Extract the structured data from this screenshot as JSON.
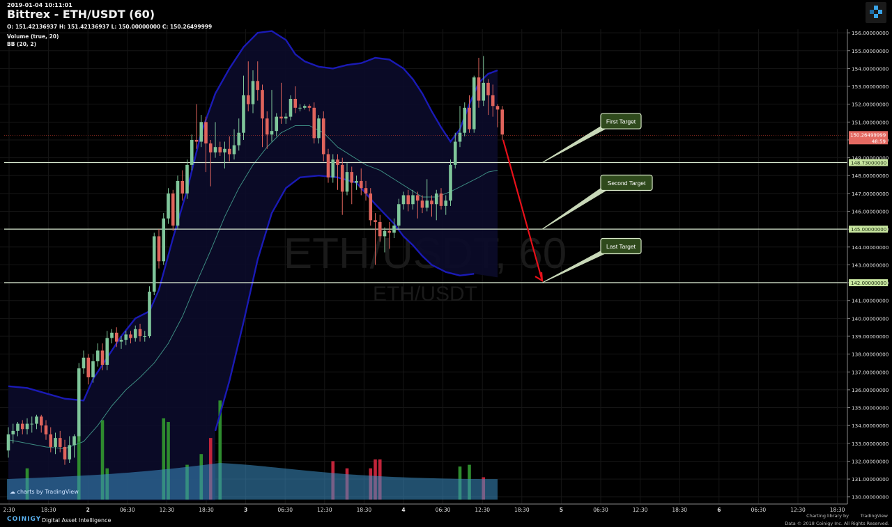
{
  "header": {
    "timestamp": "2019-01-04 10:11:01",
    "title": "Bittrex - ETH/USDT (60)",
    "ohlc": "O: 151.42136937 H: 151.42136937 L: 150.00000000 C: 150.26499999",
    "volume_indicator": "Volume (true, 20)",
    "bb_indicator": "BB (20, 2)"
  },
  "watermark": {
    "line1": "ETH/USDT, 60",
    "line2": "ETH/USDT"
  },
  "footer": {
    "brand": "COINIGY",
    "tagline": "Digital Asset Intelligence",
    "charting": "Charting library by",
    "tradingview": "TradingView",
    "copyright": "Data © 2018 Coinigy Inc. All Rights Reserved.",
    "badge": "charts by TradingView"
  },
  "colors": {
    "up": "#7fc69a",
    "down": "#e0645c",
    "volume_up": "#2e8b2e",
    "volume_down": "#c2243a",
    "bb_band": "#1a1ab5",
    "bb_basis": "#3d8c82",
    "target_box": "#2f4a1c",
    "arrow": "#e8101a",
    "price_label": "#c8e6a0",
    "current_label": "#e46a62"
  },
  "chart_data": {
    "type": "candlestick",
    "timeframe": "60",
    "ylim": [
      129.6,
      156.2
    ],
    "y_ticks": [
      130,
      131,
      132,
      133,
      134,
      135,
      136,
      137,
      138,
      139,
      140,
      141,
      142,
      143,
      144,
      145,
      146,
      147,
      148,
      149,
      150,
      151,
      152,
      153,
      154,
      155,
      156
    ],
    "x_tick_labels": [
      "2:30",
      "18:30",
      "2",
      "06:30",
      "12:30",
      "18:30",
      "3",
      "06:30",
      "12:30",
      "18:30",
      "4",
      "06:30",
      "12:30",
      "18:30",
      "5",
      "06:30",
      "12:30",
      "18:30",
      "6",
      "06:30",
      "12:30",
      "18:30"
    ],
    "candles": [
      [
        132.6,
        133.5,
        133.9,
        132.2
      ],
      [
        133.5,
        133.7,
        134.1,
        133.0
      ],
      [
        133.7,
        134.1,
        134.2,
        133.4
      ],
      [
        134.1,
        133.8,
        134.3,
        133.5
      ],
      [
        133.8,
        134.1,
        134.4,
        133.5
      ],
      [
        134.1,
        134.1,
        134.5,
        133.6
      ],
      [
        134.1,
        134.5,
        134.6,
        133.8
      ],
      [
        134.5,
        134.0,
        134.6,
        133.6
      ],
      [
        134.0,
        133.5,
        134.3,
        133.2
      ],
      [
        133.5,
        132.8,
        133.9,
        132.5
      ],
      [
        132.8,
        133.3,
        133.6,
        132.4
      ],
      [
        133.3,
        132.8,
        133.7,
        132.5
      ],
      [
        132.8,
        132.1,
        133.2,
        131.8
      ],
      [
        132.1,
        132.9,
        133.4,
        131.9
      ],
      [
        132.9,
        133.4,
        133.5,
        132.2
      ],
      [
        133.4,
        137.2,
        137.5,
        133.1
      ],
      [
        137.2,
        137.8,
        138.2,
        136.9
      ],
      [
        137.8,
        136.7,
        138.0,
        136.3
      ],
      [
        136.7,
        137.6,
        138.0,
        136.4
      ],
      [
        137.6,
        138.2,
        138.6,
        137.3
      ],
      [
        138.2,
        137.4,
        138.6,
        137.1
      ],
      [
        137.4,
        138.9,
        139.3,
        137.1
      ],
      [
        138.9,
        139.2,
        139.4,
        138.6
      ],
      [
        139.2,
        138.7,
        139.5,
        138.4
      ],
      [
        138.7,
        138.8,
        139.0,
        138.3
      ],
      [
        138.8,
        139.1,
        139.3,
        138.5
      ],
      [
        139.1,
        138.9,
        139.3,
        138.6
      ],
      [
        138.9,
        139.4,
        139.6,
        138.7
      ],
      [
        139.4,
        139.0,
        139.7,
        138.7
      ],
      [
        139.0,
        139.0,
        139.3,
        138.7
      ],
      [
        139.0,
        141.5,
        141.8,
        138.9
      ],
      [
        141.5,
        144.6,
        144.8,
        141.3
      ],
      [
        144.6,
        143.2,
        145.0,
        142.8
      ],
      [
        143.2,
        145.6,
        145.9,
        143.0
      ],
      [
        145.6,
        147.0,
        147.3,
        145.3
      ],
      [
        147.0,
        145.2,
        147.2,
        144.9
      ],
      [
        145.2,
        147.7,
        148.0,
        145.0
      ],
      [
        147.7,
        147.0,
        148.3,
        146.6
      ],
      [
        147.0,
        148.6,
        148.9,
        146.7
      ],
      [
        148.6,
        150.0,
        150.3,
        148.3
      ],
      [
        150.0,
        149.9,
        152.0,
        149.5
      ],
      [
        149.9,
        151.0,
        151.4,
        149.6
      ],
      [
        151.0,
        149.8,
        151.3,
        148.2
      ],
      [
        149.8,
        149.3,
        150.0,
        147.4
      ],
      [
        149.3,
        149.6,
        151.0,
        149.0
      ],
      [
        149.6,
        149.3,
        149.9,
        149.1
      ],
      [
        149.3,
        149.5,
        149.9,
        148.4
      ],
      [
        149.5,
        149.2,
        150.2,
        148.8
      ],
      [
        149.2,
        149.7,
        150.6,
        148.9
      ],
      [
        149.7,
        150.4,
        151.2,
        149.4
      ],
      [
        150.4,
        152.5,
        153.6,
        150.0
      ],
      [
        152.5,
        152.0,
        154.4,
        151.6
      ],
      [
        152.0,
        153.3,
        153.9,
        151.5
      ],
      [
        153.3,
        152.8,
        154.4,
        152.2
      ],
      [
        152.8,
        151.2,
        153.1,
        149.6
      ],
      [
        151.2,
        150.3,
        151.6,
        149.5
      ],
      [
        150.3,
        150.5,
        152.8,
        149.9
      ],
      [
        150.5,
        151.3,
        151.5,
        150.2
      ],
      [
        151.3,
        151.2,
        153.2,
        150.9
      ],
      [
        151.2,
        151.3,
        151.5,
        150.9
      ],
      [
        151.3,
        152.3,
        152.5,
        151.1
      ],
      [
        152.3,
        151.8,
        153.0,
        151.5
      ],
      [
        151.8,
        151.8,
        152.0,
        151.6
      ],
      [
        151.8,
        151.9,
        152.0,
        151.7
      ],
      [
        151.9,
        151.8,
        152.0,
        151.6
      ],
      [
        151.8,
        150.1,
        152.1,
        149.8
      ],
      [
        150.1,
        151.2,
        151.4,
        149.8
      ],
      [
        151.2,
        149.2,
        151.6,
        148.8
      ],
      [
        149.2,
        147.9,
        149.5,
        147.6
      ],
      [
        147.9,
        148.9,
        149.2,
        147.6
      ],
      [
        148.9,
        148.6,
        149.2,
        147.2
      ],
      [
        148.6,
        147.1,
        149.0,
        145.8
      ],
      [
        147.1,
        148.2,
        148.7,
        146.9
      ],
      [
        148.2,
        147.6,
        148.5,
        146.4
      ],
      [
        147.6,
        147.7,
        148.0,
        147.2
      ],
      [
        147.7,
        147.3,
        148.4,
        146.9
      ],
      [
        147.3,
        147.0,
        147.7,
        146.6
      ],
      [
        147.0,
        145.5,
        147.3,
        145.2
      ],
      [
        145.5,
        145.4,
        145.9,
        143.0
      ],
      [
        145.4,
        144.6,
        145.8,
        144.3
      ],
      [
        144.6,
        144.9,
        145.1,
        143.7
      ],
      [
        144.9,
        144.8,
        145.4,
        143.9
      ],
      [
        144.8,
        145.2,
        145.6,
        144.5
      ],
      [
        145.2,
        146.4,
        146.7,
        145.0
      ],
      [
        146.4,
        146.9,
        147.1,
        146.1
      ],
      [
        146.9,
        146.4,
        147.2,
        146.0
      ],
      [
        146.4,
        146.9,
        147.2,
        146.1
      ],
      [
        146.9,
        146.6,
        147.1,
        145.6
      ],
      [
        146.6,
        146.2,
        146.9,
        145.9
      ],
      [
        146.2,
        146.6,
        147.8,
        146.0
      ],
      [
        146.6,
        146.4,
        146.9,
        145.7
      ],
      [
        146.4,
        147.0,
        147.2,
        145.5
      ],
      [
        147.0,
        146.3,
        147.3,
        146.1
      ],
      [
        146.3,
        146.6,
        146.9,
        145.8
      ],
      [
        146.6,
        148.6,
        148.9,
        146.3
      ],
      [
        148.6,
        149.9,
        150.4,
        148.4
      ],
      [
        149.9,
        150.4,
        151.9,
        149.6
      ],
      [
        150.4,
        151.8,
        152.1,
        150.2
      ],
      [
        151.8,
        150.6,
        152.5,
        150.4
      ],
      [
        150.6,
        153.5,
        153.6,
        150.4
      ],
      [
        153.5,
        152.2,
        154.6,
        151.8
      ],
      [
        152.2,
        153.2,
        154.7,
        151.9
      ],
      [
        153.2,
        152.5,
        153.4,
        151.4
      ],
      [
        152.5,
        151.9,
        153.1,
        151.3
      ],
      [
        151.9,
        151.7,
        152.0,
        150.7
      ],
      [
        151.7,
        150.3,
        151.9,
        150.0
      ]
    ],
    "bb_upper": [
      [
        0,
        136.2
      ],
      [
        4,
        136.1
      ],
      [
        8,
        135.8
      ],
      [
        12,
        135.5
      ],
      [
        16,
        135.4
      ],
      [
        18,
        136.6
      ],
      [
        21,
        137.8
      ],
      [
        24,
        139.0
      ],
      [
        27,
        140.0
      ],
      [
        30,
        140.4
      ],
      [
        32,
        141.6
      ],
      [
        35,
        144.5
      ],
      [
        38,
        147.2
      ],
      [
        41,
        150.4
      ],
      [
        44,
        152.6
      ],
      [
        47,
        154.0
      ],
      [
        50,
        155.2
      ],
      [
        53,
        156.0
      ],
      [
        56,
        156.1
      ],
      [
        59,
        155.6
      ],
      [
        61,
        154.8
      ],
      [
        63,
        154.4
      ],
      [
        66,
        154.1
      ],
      [
        69,
        154.0
      ],
      [
        72,
        154.2
      ],
      [
        75,
        154.3
      ],
      [
        78,
        154.6
      ],
      [
        81,
        154.5
      ],
      [
        84,
        154.0
      ],
      [
        86,
        153.4
      ],
      [
        88,
        152.6
      ],
      [
        90,
        151.6
      ],
      [
        92,
        150.7
      ],
      [
        94,
        149.9
      ],
      [
        96,
        150.6
      ],
      [
        98,
        152.0
      ],
      [
        100,
        153.2
      ],
      [
        102,
        153.7
      ],
      [
        104,
        153.9
      ]
    ],
    "bb_lower": [
      [
        44,
        133.7
      ],
      [
        47,
        136.5
      ],
      [
        50,
        139.8
      ],
      [
        53,
        143.3
      ],
      [
        56,
        145.9
      ],
      [
        59,
        147.3
      ],
      [
        62,
        147.9
      ],
      [
        66,
        148.0
      ],
      [
        70,
        147.9
      ],
      [
        74,
        147.6
      ],
      [
        78,
        146.4
      ],
      [
        82,
        145.3
      ],
      [
        84,
        144.6
      ],
      [
        86,
        144.1
      ],
      [
        88,
        143.5
      ],
      [
        90,
        143.0
      ],
      [
        93,
        142.6
      ],
      [
        96,
        142.4
      ],
      [
        99,
        142.5
      ]
    ],
    "bb_basis": [
      [
        0,
        133.2
      ],
      [
        4,
        133.0
      ],
      [
        8,
        132.8
      ],
      [
        12,
        132.7
      ],
      [
        16,
        133.1
      ],
      [
        19,
        134.0
      ],
      [
        22,
        135.1
      ],
      [
        25,
        136.0
      ],
      [
        28,
        136.7
      ],
      [
        31,
        137.5
      ],
      [
        34,
        138.6
      ],
      [
        37,
        140.1
      ],
      [
        40,
        142.0
      ],
      [
        43,
        143.8
      ],
      [
        46,
        145.7
      ],
      [
        49,
        147.3
      ],
      [
        52,
        148.6
      ],
      [
        55,
        149.6
      ],
      [
        58,
        150.4
      ],
      [
        61,
        150.8
      ],
      [
        64,
        150.8
      ],
      [
        67,
        150.4
      ],
      [
        70,
        149.6
      ],
      [
        73,
        149.1
      ],
      [
        76,
        148.6
      ],
      [
        79,
        148.3
      ],
      [
        82,
        147.8
      ],
      [
        85,
        147.3
      ],
      [
        88,
        146.8
      ],
      [
        91,
        146.8
      ],
      [
        94,
        147.1
      ],
      [
        97,
        147.5
      ],
      [
        100,
        147.9
      ],
      [
        102,
        148.2
      ],
      [
        104,
        148.3
      ]
    ],
    "volume_bars": [
      [
        4,
        "up",
        131.6
      ],
      [
        15,
        "up",
        134.1
      ],
      [
        20,
        "up",
        134.3
      ],
      [
        21,
        "up",
        131.6
      ],
      [
        33,
        "up",
        134.4
      ],
      [
        34,
        "up",
        134.2
      ],
      [
        38,
        "up",
        131.8
      ],
      [
        41,
        "up",
        132.4
      ],
      [
        43,
        "down",
        133.3
      ],
      [
        45,
        "up",
        135.4
      ],
      [
        69,
        "down",
        132.0
      ],
      [
        72,
        "down",
        131.6
      ],
      [
        77,
        "down",
        131.6
      ],
      [
        78,
        "down",
        132.1
      ],
      [
        79,
        "down",
        132.1
      ],
      [
        96,
        "up",
        131.7
      ],
      [
        98,
        "up",
        131.8
      ],
      [
        101,
        "down",
        131.1
      ]
    ],
    "volume_avg_top": 131.4,
    "horizontal_levels": [
      {
        "price": 148.73,
        "label": "148.73000000"
      },
      {
        "price": 145.0,
        "label": "145.00000000"
      },
      {
        "price": 142.0,
        "label": "142.00000000"
      }
    ],
    "current_price": {
      "price": 150.26,
      "label": "150.26499999",
      "countdown": "48:59"
    },
    "annotations": [
      {
        "text": "First Target",
        "price": 151.05
      },
      {
        "text": "Second Target",
        "price": 147.6
      },
      {
        "text": "Last Target",
        "price": 144.05
      }
    ]
  }
}
